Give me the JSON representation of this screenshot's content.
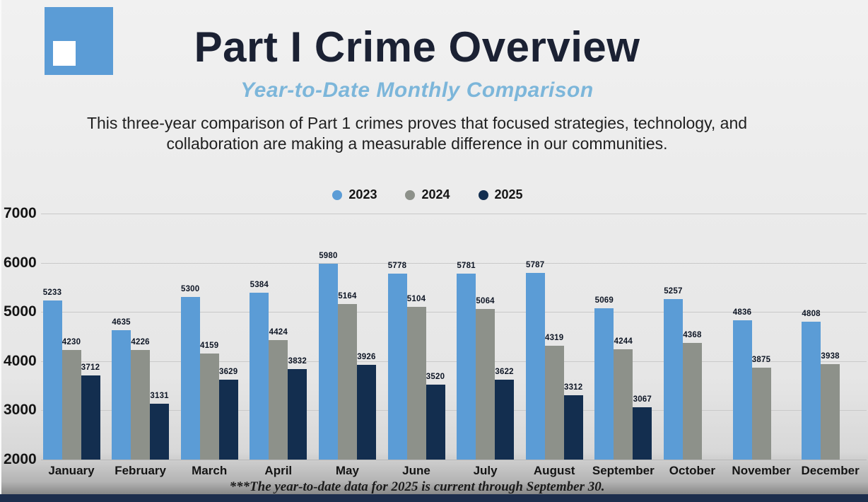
{
  "header": {
    "title": "Part I Crime Overview",
    "subtitle": "Year-to-Date Monthly Comparison",
    "description_line1": "This three-year comparison of Part 1 crimes proves that focused strategies, technology, and",
    "description_line2": "collaboration are making a measurable difference in our communities."
  },
  "footnote": "***The year-to-date data for 2025 is current through September 30.",
  "colors": {
    "accent_blue": "#5b9cd6",
    "series_2023": "#5b9cd6",
    "series_2024": "#8d918a",
    "series_2025": "#132e4f",
    "subtitle_blue": "#7cb6da",
    "footer_strip": "#1d2e4d"
  },
  "chart_data": {
    "type": "bar",
    "title": "Part I Crime Overview - Year-to-Date Monthly Comparison",
    "categories": [
      "January",
      "February",
      "March",
      "April",
      "May",
      "June",
      "July",
      "August",
      "September",
      "October",
      "November",
      "December"
    ],
    "series": [
      {
        "name": "2023",
        "color": "#5b9cd6",
        "values": [
          5233,
          4635,
          5300,
          5384,
          5980,
          5778,
          5781,
          5787,
          5069,
          5257,
          4836,
          4808
        ]
      },
      {
        "name": "2024",
        "color": "#8d918a",
        "values": [
          4230,
          4226,
          4159,
          4424,
          5164,
          5104,
          5064,
          4319,
          4244,
          4368,
          3875,
          3938
        ]
      },
      {
        "name": "2025",
        "color": "#132e4f",
        "values": [
          3712,
          3131,
          3629,
          3832,
          3926,
          3520,
          3622,
          3312,
          3067,
          null,
          null,
          null
        ]
      }
    ],
    "xlabel": "",
    "ylabel": "",
    "ylim": [
      2000,
      7000
    ],
    "yticks": [
      2000,
      3000,
      4000,
      5000,
      6000,
      7000
    ],
    "grid": true,
    "legend_position": "top",
    "data_labels": true
  }
}
